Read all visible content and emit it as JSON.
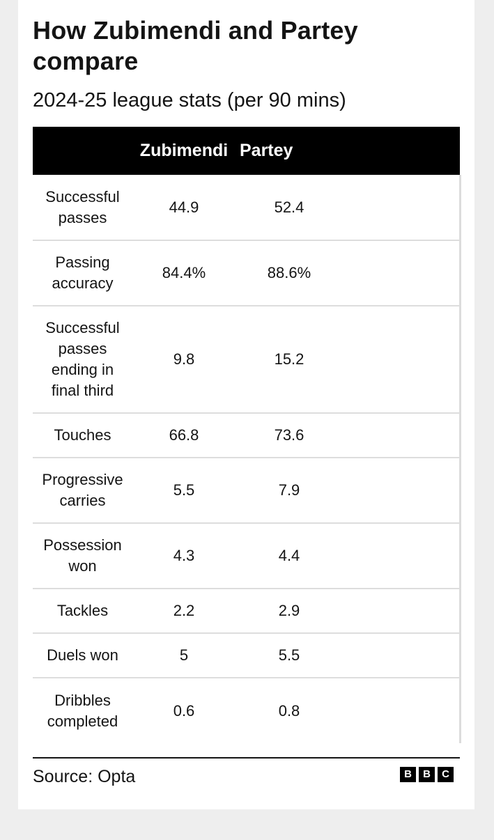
{
  "header": {
    "title": "How Zubimendi and Partey compare",
    "subtitle": "2024-25 league stats (per 90 mins)"
  },
  "table": {
    "columns": {
      "label": "",
      "player1": "Zubimendi",
      "player2": "Partey"
    },
    "rows": [
      {
        "label": "Successful passes",
        "player1": "44.9",
        "player2": "52.4"
      },
      {
        "label": "Passing accuracy",
        "player1": "84.4%",
        "player2": "88.6%"
      },
      {
        "label": "Successful passes ending in final third",
        "player1": "9.8",
        "player2": "15.2"
      },
      {
        "label": "Touches",
        "player1": "66.8",
        "player2": "73.6"
      },
      {
        "label": "Progressive carries",
        "player1": "5.5",
        "player2": "7.9"
      },
      {
        "label": "Possession won",
        "player1": "4.3",
        "player2": "4.4"
      },
      {
        "label": "Tackles",
        "player1": "2.2",
        "player2": "2.9"
      },
      {
        "label": "Duels won",
        "player1": "5",
        "player2": "5.5"
      },
      {
        "label": "Dribbles completed",
        "player1": "0.6",
        "player2": "0.8"
      }
    ]
  },
  "footer": {
    "source": "Source: Opta",
    "logo_letters": [
      "B",
      "B",
      "C"
    ]
  },
  "colors": {
    "header_bg": "#000000",
    "header_text": "#ffffff",
    "page_bg": "#eeeeee",
    "card_bg": "#ffffff",
    "row_divider": "#dddddd"
  }
}
